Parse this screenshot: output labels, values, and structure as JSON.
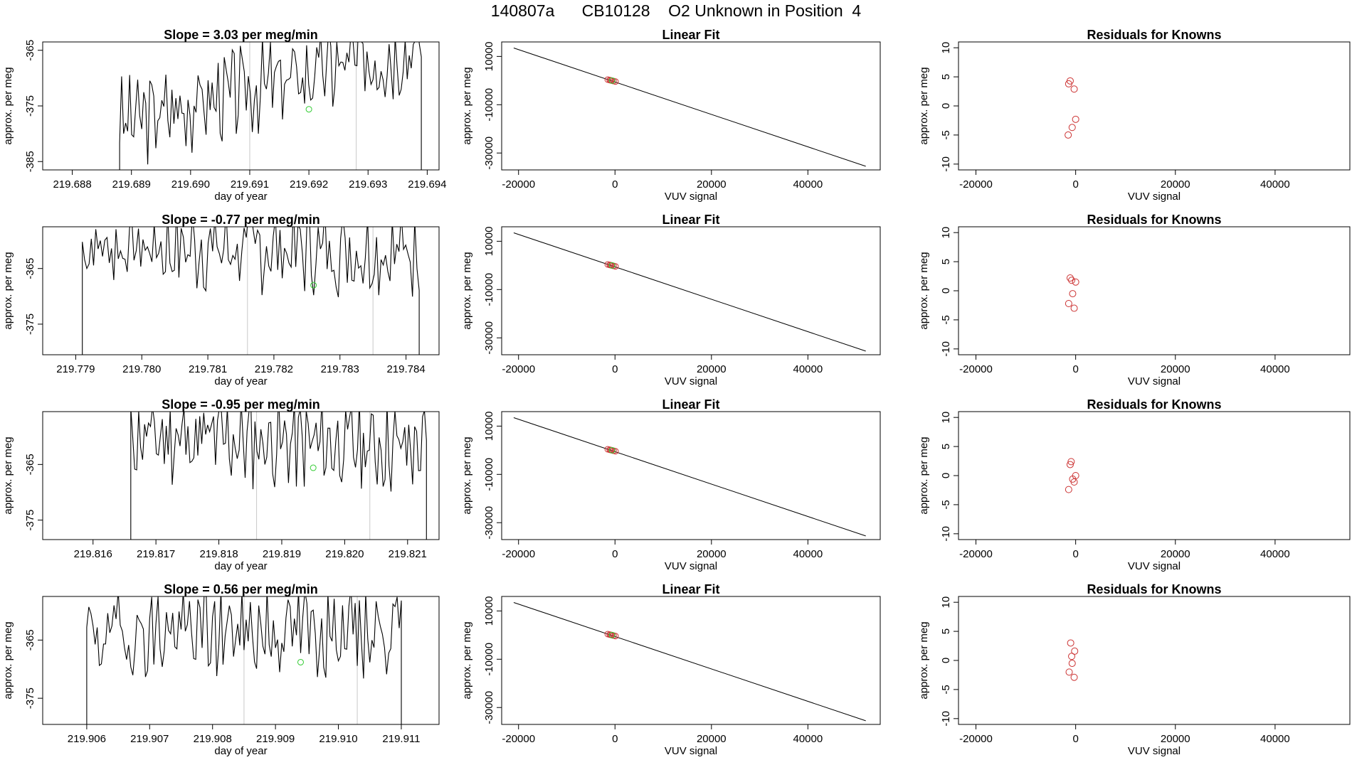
{
  "figure": {
    "title": "140807a      CB10128    O2 Unknown in Position  4"
  },
  "colors": {
    "trace": "#000000",
    "knowns": "#cc3333",
    "unknown": "#33cc33",
    "marker_line": "#c8c8c8",
    "fit_line": "#000000"
  },
  "chart_data": [
    {
      "type": "line",
      "row": 0,
      "panel": "timeseries",
      "title": "Slope =  3.03  per meg/min",
      "xlabel": "day of year",
      "ylabel": "approx. per meg",
      "xlim": [
        219.6875,
        219.6942
      ],
      "ylim": [
        -386.5,
        -363.5
      ],
      "xticks": [
        "219.688",
        "219.689",
        "219.690",
        "219.691",
        "219.692",
        "219.693",
        "219.694"
      ],
      "yticks": [
        "-365",
        "-375",
        "-385"
      ],
      "vlines": [
        219.691,
        219.6928
      ],
      "unknown_point": [
        219.692,
        -375.6
      ],
      "trace": {
        "start": 219.6888,
        "end": 219.6939,
        "base": -384,
        "trend": 14,
        "amp": 6.5,
        "seed": 3
      }
    },
    {
      "type": "scatter",
      "row": 0,
      "panel": "linear-fit",
      "title": "Linear Fit",
      "xlabel": "VUV signal",
      "ylabel": "approx. per meg",
      "xlim": [
        -23500,
        55000
      ],
      "ylim": [
        -37000,
        16000
      ],
      "xticks": [
        "-20000",
        "0",
        "20000",
        "40000"
      ],
      "yticks": [
        "10000",
        "-10000",
        "-30000"
      ],
      "fit_line": [
        [
          -21000,
          13500
        ],
        [
          52000,
          -35500
        ]
      ],
      "knowns": [
        [
          -1500,
          400
        ],
        [
          -1100,
          200
        ],
        [
          -700,
          0
        ],
        [
          -300,
          -200
        ],
        [
          100,
          -400
        ],
        [
          -900,
          100
        ]
      ],
      "unknown_point": [
        -600,
        0
      ]
    },
    {
      "type": "scatter",
      "row": 0,
      "panel": "residuals",
      "title": "Residuals for Knowns",
      "xlabel": "VUV signal",
      "ylabel": "approx. per meg",
      "xlim": [
        -23500,
        55000
      ],
      "ylim": [
        -11,
        11
      ],
      "xticks": [
        "-20000",
        "0",
        "20000",
        "40000"
      ],
      "yticks": [
        "10",
        "5",
        "0",
        "-5",
        "-10"
      ],
      "points": [
        [
          -1100,
          4.3
        ],
        [
          -1400,
          3.8
        ],
        [
          -300,
          2.9
        ],
        [
          0,
          -2.3
        ],
        [
          -700,
          -3.7
        ],
        [
          -1500,
          -5.0
        ]
      ]
    },
    {
      "type": "line",
      "row": 1,
      "panel": "timeseries",
      "title": "Slope =  -0.77  per meg/min",
      "xlabel": "day of year",
      "ylabel": "approx. per meg",
      "xlim": [
        219.7785,
        219.7845
      ],
      "ylim": [
        -380.5,
        -357.5
      ],
      "xticks": [
        "219.779",
        "219.780",
        "219.781",
        "219.782",
        "219.783",
        "219.784"
      ],
      "yticks": [
        "-365",
        "-375"
      ],
      "vlines": [
        219.7816,
        219.7835
      ],
      "unknown_point": [
        219.7826,
        -368.0
      ],
      "trace": {
        "start": 219.7791,
        "end": 219.7842,
        "base": -367,
        "trend": -1,
        "amp": 6.5,
        "seed": 7
      }
    },
    {
      "type": "scatter",
      "row": 1,
      "panel": "linear-fit",
      "title": "Linear Fit",
      "xlabel": "VUV signal",
      "ylabel": "approx. per meg",
      "xlim": [
        -23500,
        55000
      ],
      "ylim": [
        -37000,
        16000
      ],
      "xticks": [
        "-20000",
        "0",
        "20000",
        "40000"
      ],
      "yticks": [
        "10000",
        "-10000",
        "-30000"
      ],
      "fit_line": [
        [
          -21000,
          13500
        ],
        [
          52000,
          -35500
        ]
      ],
      "knowns": [
        [
          -1500,
          400
        ],
        [
          -1100,
          200
        ],
        [
          -700,
          0
        ],
        [
          -300,
          -200
        ],
        [
          100,
          -400
        ],
        [
          -900,
          100
        ]
      ],
      "unknown_point": [
        -600,
        0
      ]
    },
    {
      "type": "scatter",
      "row": 1,
      "panel": "residuals",
      "title": "Residuals for Knowns",
      "xlabel": "VUV signal",
      "ylabel": "approx. per meg",
      "xlim": [
        -23500,
        55000
      ],
      "ylim": [
        -11,
        11
      ],
      "xticks": [
        "-20000",
        "0",
        "20000",
        "40000"
      ],
      "yticks": [
        "10",
        "5",
        "0",
        "-5",
        "-10"
      ],
      "points": [
        [
          -1100,
          2.2
        ],
        [
          -800,
          1.8
        ],
        [
          0,
          1.5
        ],
        [
          -600,
          -0.5
        ],
        [
          -1400,
          -2.2
        ],
        [
          -300,
          -3.0
        ]
      ]
    },
    {
      "type": "line",
      "row": 2,
      "panel": "timeseries",
      "title": "Slope =  -0.95  per meg/min",
      "xlabel": "day of year",
      "ylabel": "approx. per meg",
      "xlim": [
        219.8152,
        219.8215
      ],
      "ylim": [
        -378.5,
        -355.5
      ],
      "xticks": [
        "219.816",
        "219.817",
        "219.818",
        "219.819",
        "219.820",
        "219.821"
      ],
      "yticks": [
        "-365",
        "-375"
      ],
      "vlines": [
        219.8186,
        219.8204
      ],
      "unknown_point": [
        219.8195,
        -365.6
      ],
      "trace": {
        "start": 219.8166,
        "end": 219.8213,
        "base": -366,
        "trend": -2,
        "amp": 6.5,
        "seed": 11
      }
    },
    {
      "type": "scatter",
      "row": 2,
      "panel": "linear-fit",
      "title": "Linear Fit",
      "xlabel": "VUV signal",
      "ylabel": "approx. per meg",
      "xlim": [
        -23500,
        55000
      ],
      "ylim": [
        -37000,
        16000
      ],
      "xticks": [
        "-20000",
        "0",
        "20000",
        "40000"
      ],
      "yticks": [
        "10000",
        "-10000",
        "-30000"
      ],
      "fit_line": [
        [
          -21000,
          13500
        ],
        [
          52000,
          -35500
        ]
      ],
      "knowns": [
        [
          -1500,
          400
        ],
        [
          -1100,
          200
        ],
        [
          -700,
          0
        ],
        [
          -300,
          -200
        ],
        [
          100,
          -400
        ],
        [
          -900,
          100
        ]
      ],
      "unknown_point": [
        -600,
        0
      ]
    },
    {
      "type": "scatter",
      "row": 2,
      "panel": "residuals",
      "title": "Residuals for Knowns",
      "xlabel": "VUV signal",
      "ylabel": "approx. per meg",
      "xlim": [
        -23500,
        55000
      ],
      "ylim": [
        -11,
        11
      ],
      "xticks": [
        "-20000",
        "0",
        "20000",
        "40000"
      ],
      "yticks": [
        "10",
        "5",
        "0",
        "-5",
        "-10"
      ],
      "points": [
        [
          -900,
          2.4
        ],
        [
          -1100,
          1.9
        ],
        [
          0,
          0.0
        ],
        [
          -600,
          -0.6
        ],
        [
          -300,
          -1.1
        ],
        [
          -1400,
          -2.4
        ]
      ]
    },
    {
      "type": "line",
      "row": 3,
      "panel": "timeseries",
      "title": "Slope =  0.56  per meg/min",
      "xlabel": "day of year",
      "ylabel": "approx. per meg",
      "xlim": [
        219.9053,
        219.9116
      ],
      "ylim": [
        -379.5,
        -357.5
      ],
      "xticks": [
        "219.906",
        "219.907",
        "219.908",
        "219.909",
        "219.910",
        "219.911"
      ],
      "yticks": [
        "-365",
        "-375"
      ],
      "vlines": [
        219.9085,
        219.9103
      ],
      "unknown_point": [
        219.9094,
        -368.8
      ],
      "trace": {
        "start": 219.906,
        "end": 219.911,
        "base": -370,
        "trend": 1,
        "amp": 6.5,
        "seed": 19
      }
    },
    {
      "type": "scatter",
      "row": 3,
      "panel": "linear-fit",
      "title": "Linear Fit",
      "xlabel": "VUV signal",
      "ylabel": "approx. per meg",
      "xlim": [
        -23500,
        55000
      ],
      "ylim": [
        -37000,
        16000
      ],
      "xticks": [
        "-20000",
        "0",
        "20000",
        "40000"
      ],
      "yticks": [
        "10000",
        "-10000",
        "-30000"
      ],
      "fit_line": [
        [
          -21000,
          13500
        ],
        [
          52000,
          -35500
        ]
      ],
      "knowns": [
        [
          -1500,
          400
        ],
        [
          -1100,
          200
        ],
        [
          -700,
          0
        ],
        [
          -300,
          -200
        ],
        [
          100,
          -400
        ],
        [
          -900,
          100
        ]
      ],
      "unknown_point": [
        -600,
        0
      ]
    },
    {
      "type": "scatter",
      "row": 3,
      "panel": "residuals",
      "title": "Residuals for Knowns",
      "xlabel": "VUV signal",
      "ylabel": "approx. per meg",
      "xlim": [
        -23500,
        55000
      ],
      "ylim": [
        -11,
        11
      ],
      "xticks": [
        "-20000",
        "0",
        "20000",
        "40000"
      ],
      "yticks": [
        "10",
        "5",
        "0",
        "-5",
        "-10"
      ],
      "points": [
        [
          -1000,
          3.0
        ],
        [
          -200,
          1.6
        ],
        [
          -800,
          0.7
        ],
        [
          -700,
          -0.5
        ],
        [
          -1300,
          -2.0
        ],
        [
          -300,
          -2.9
        ]
      ]
    }
  ]
}
